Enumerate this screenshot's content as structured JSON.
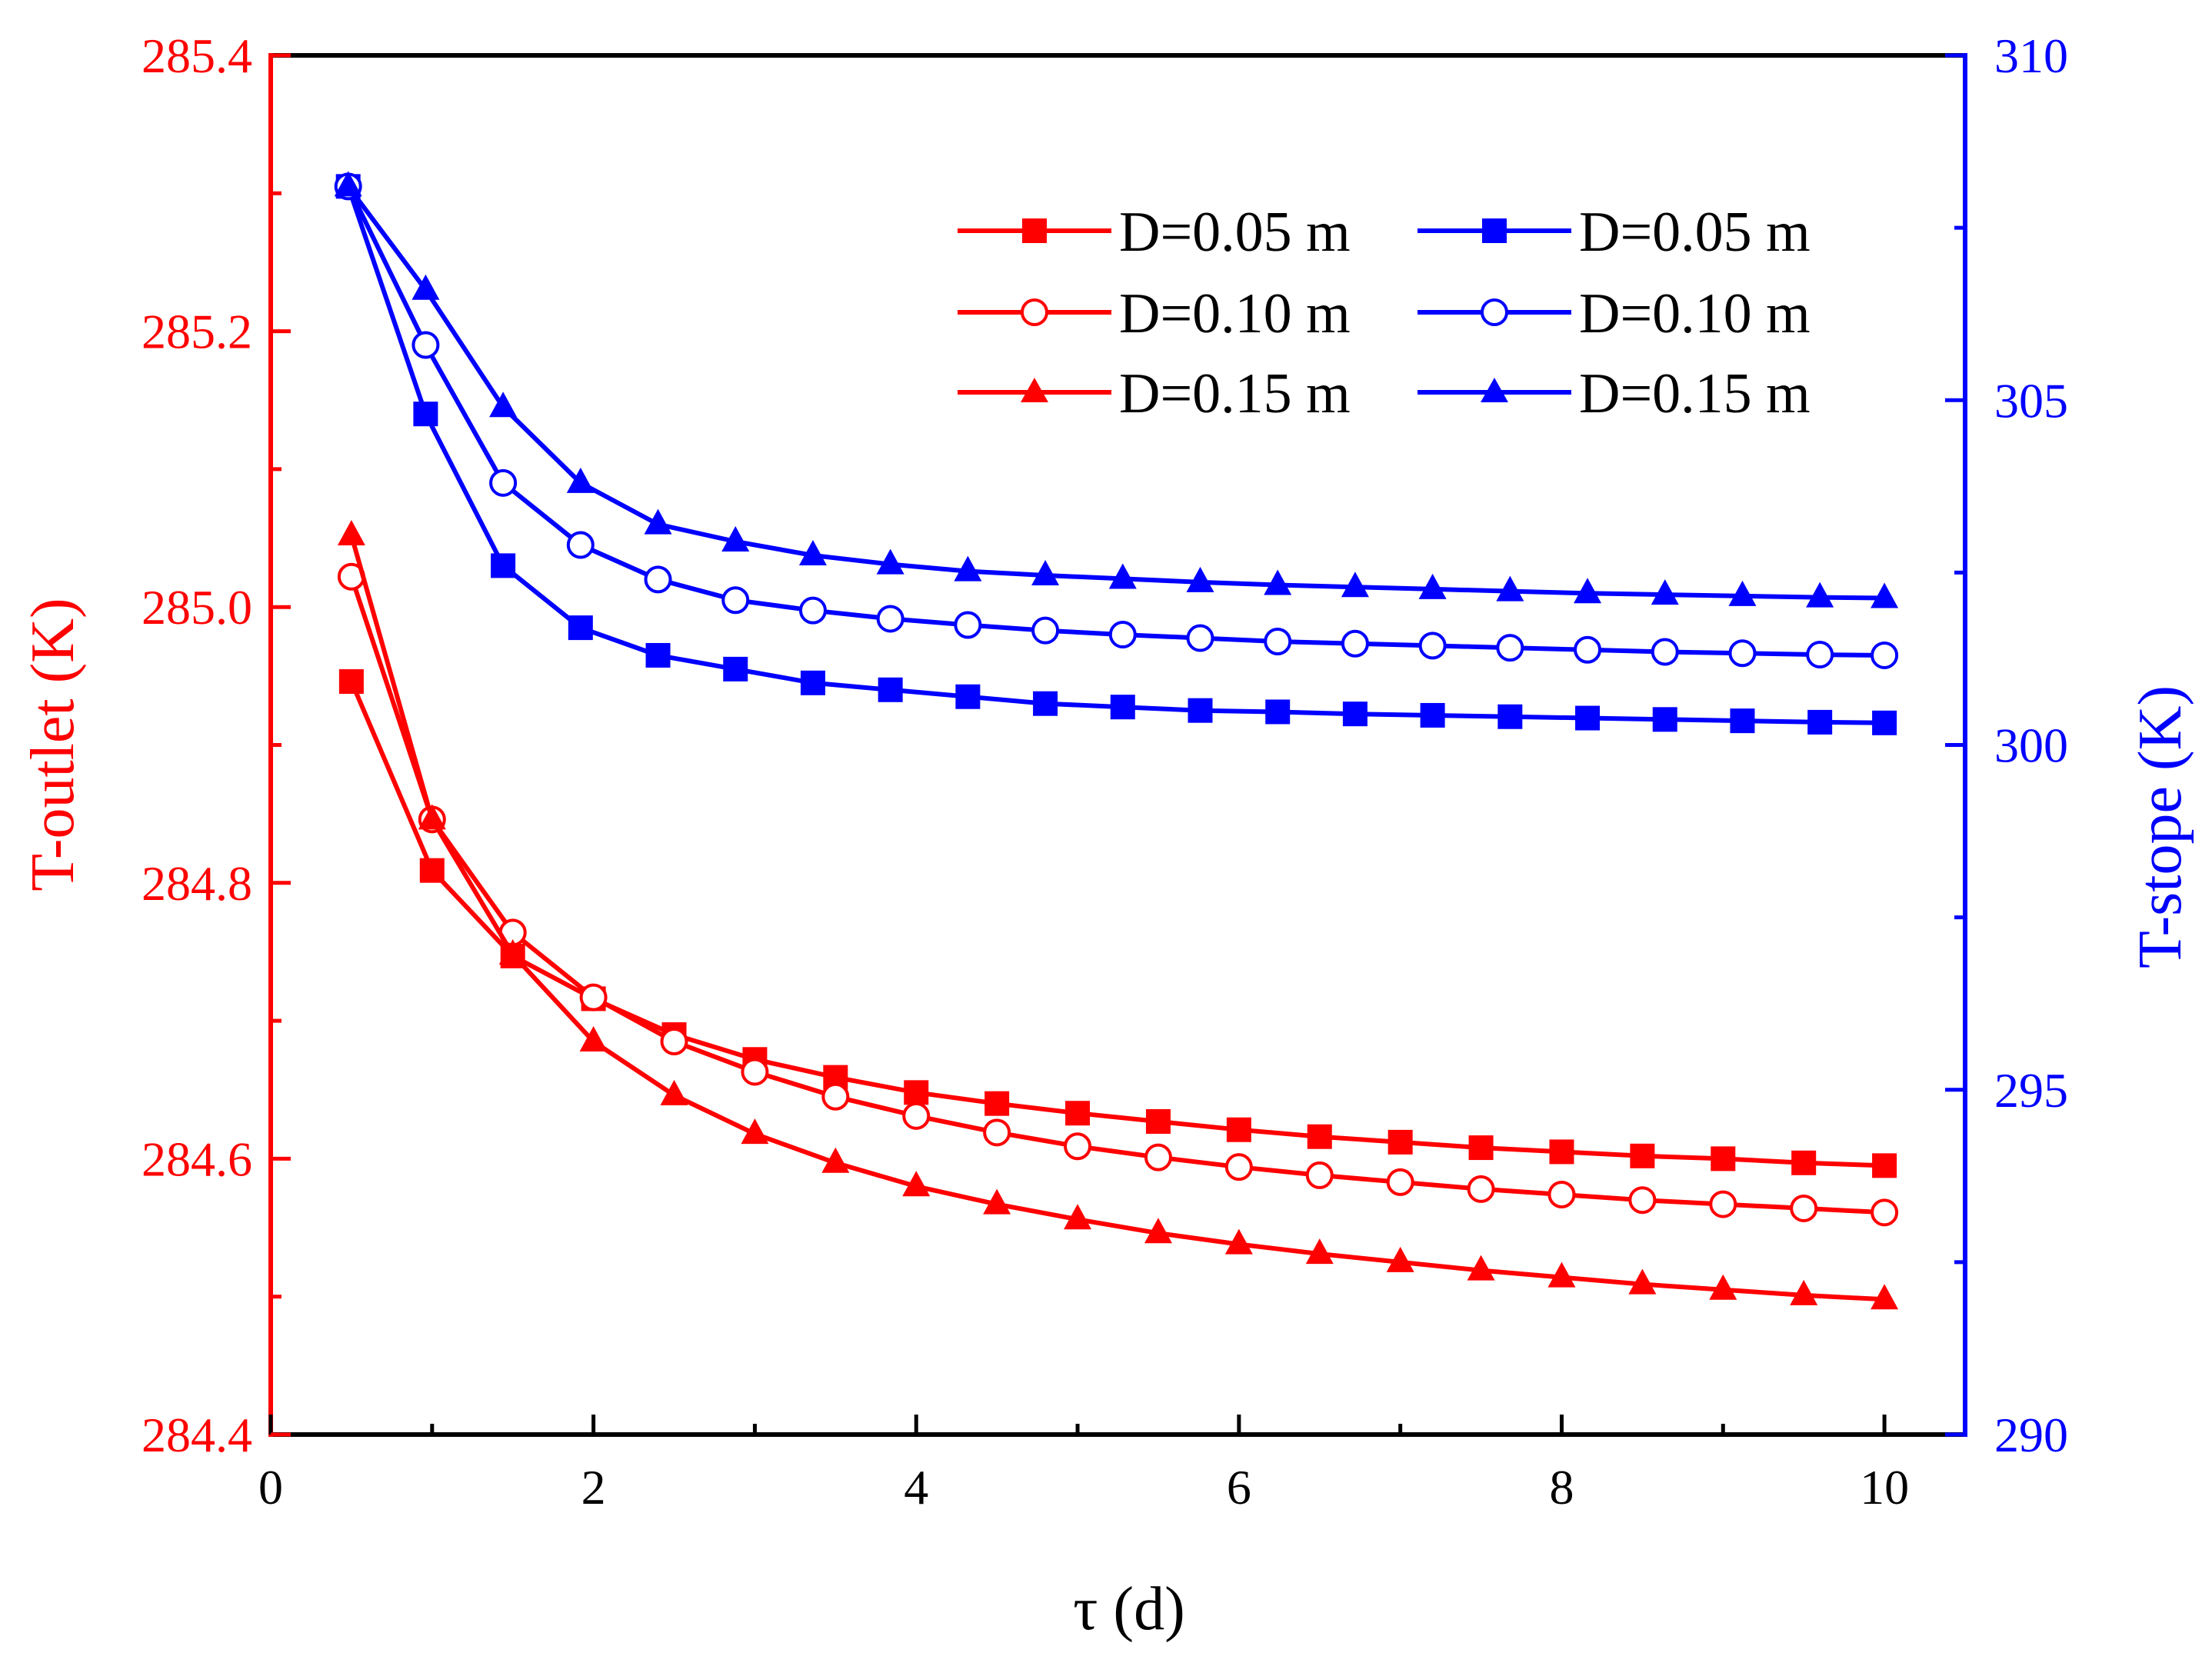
{
  "chart_data": {
    "type": "line",
    "xlabel": "τ (d)",
    "ylabel_left": "T-outlet (K)",
    "ylabel_right": "T-stope (K)",
    "xlim": [
      0,
      10.5
    ],
    "ylim_left": [
      284.4,
      285.4
    ],
    "ylim_right": [
      290,
      310
    ],
    "x_ticks": [
      0,
      2,
      4,
      6,
      8,
      10
    ],
    "y_left_ticks": [
      284.4,
      284.6,
      284.8,
      285.0,
      285.2,
      285.4
    ],
    "y_left_tick_labels": [
      "284.4",
      "284.6",
      "284.8",
      "285.0",
      "285.2",
      "285.4"
    ],
    "y_right_ticks": [
      290,
      295,
      300,
      305,
      310
    ],
    "colors": {
      "left": "#ff0000",
      "right": "#0000ff",
      "frame": "#000000"
    },
    "series": [
      {
        "name": "D=0.05 m",
        "axis": "left",
        "marker": "square",
        "color": "#ff0000",
        "x": [
          0.5,
          1.0,
          1.5,
          2.0,
          2.5,
          3.0,
          3.5,
          4.0,
          4.5,
          5.0,
          5.5,
          6.0,
          6.5,
          7.0,
          7.5,
          8.0,
          8.5,
          9.0,
          9.5,
          10.0
        ],
        "values": [
          284.946,
          284.809,
          284.747,
          284.716,
          284.69,
          284.672,
          284.659,
          284.648,
          284.64,
          284.633,
          284.627,
          284.621,
          284.616,
          284.612,
          284.608,
          284.605,
          284.602,
          284.6,
          284.597,
          284.595
        ]
      },
      {
        "name": "D=0.10 m",
        "axis": "left",
        "marker": "circle",
        "color": "#ff0000",
        "x": [
          0.5,
          1.0,
          1.5,
          2.0,
          2.5,
          3.0,
          3.5,
          4.0,
          4.5,
          5.0,
          5.5,
          6.0,
          6.5,
          7.0,
          7.5,
          8.0,
          8.5,
          9.0,
          9.5,
          10.0
        ],
        "values": [
          285.022,
          284.846,
          284.764,
          284.717,
          284.685,
          284.663,
          284.645,
          284.631,
          284.619,
          284.609,
          284.601,
          284.594,
          284.588,
          284.583,
          284.578,
          284.574,
          284.57,
          284.567,
          284.564,
          284.561
        ]
      },
      {
        "name": "D=0.15 m",
        "axis": "left",
        "marker": "triangle",
        "color": "#ff0000",
        "x": [
          0.5,
          1.0,
          1.5,
          2.0,
          2.5,
          3.0,
          3.5,
          4.0,
          4.5,
          5.0,
          5.5,
          6.0,
          6.5,
          7.0,
          7.5,
          8.0,
          8.5,
          9.0,
          9.5,
          10.0
        ],
        "values": [
          285.052,
          284.846,
          284.748,
          284.685,
          284.646,
          284.618,
          284.597,
          284.58,
          284.567,
          284.556,
          284.546,
          284.538,
          284.531,
          284.525,
          284.519,
          284.514,
          284.509,
          284.505,
          284.501,
          284.498
        ]
      },
      {
        "name": "D=0.05 m",
        "axis": "right",
        "marker": "square",
        "color": "#0000ff",
        "x": [
          0.48,
          0.96,
          1.44,
          1.92,
          2.4,
          2.88,
          3.36,
          3.84,
          4.32,
          4.8,
          5.28,
          5.76,
          6.24,
          6.72,
          7.2,
          7.68,
          8.16,
          8.64,
          9.12,
          9.6,
          10.0
        ],
        "values": [
          308.1,
          304.8,
          302.6,
          301.7,
          301.3,
          301.1,
          300.9,
          300.8,
          300.7,
          300.6,
          300.55,
          300.5,
          300.48,
          300.45,
          300.43,
          300.41,
          300.39,
          300.37,
          300.35,
          300.33,
          300.32
        ]
      },
      {
        "name": "D=0.10 m",
        "axis": "right",
        "marker": "circle",
        "color": "#0000ff",
        "x": [
          0.48,
          0.96,
          1.44,
          1.92,
          2.4,
          2.88,
          3.36,
          3.84,
          4.32,
          4.8,
          5.28,
          5.76,
          6.24,
          6.72,
          7.2,
          7.68,
          8.16,
          8.64,
          9.12,
          9.6,
          10.0
        ],
        "values": [
          308.1,
          305.8,
          303.8,
          302.9,
          302.4,
          302.1,
          301.95,
          301.83,
          301.74,
          301.66,
          301.6,
          301.55,
          301.5,
          301.47,
          301.44,
          301.41,
          301.38,
          301.35,
          301.33,
          301.31,
          301.3
        ]
      },
      {
        "name": "D=0.15 m",
        "axis": "right",
        "marker": "triangle",
        "color": "#0000ff",
        "x": [
          0.48,
          0.96,
          1.44,
          1.92,
          2.4,
          2.88,
          3.36,
          3.84,
          4.32,
          4.8,
          5.28,
          5.76,
          6.24,
          6.72,
          7.2,
          7.68,
          8.16,
          8.64,
          9.12,
          9.6,
          10.0
        ],
        "values": [
          308.1,
          306.6,
          304.9,
          303.8,
          303.2,
          302.95,
          302.75,
          302.62,
          302.52,
          302.46,
          302.41,
          302.36,
          302.32,
          302.29,
          302.26,
          302.23,
          302.2,
          302.18,
          302.16,
          302.14,
          302.13
        ]
      }
    ],
    "legend": {
      "placement": "top-right",
      "columns": [
        [
          "D=0.05 m",
          "D=0.10 m",
          "D=0.15 m"
        ],
        [
          "D=0.05 m",
          "D=0.10 m",
          "D=0.15 m"
        ]
      ]
    }
  }
}
